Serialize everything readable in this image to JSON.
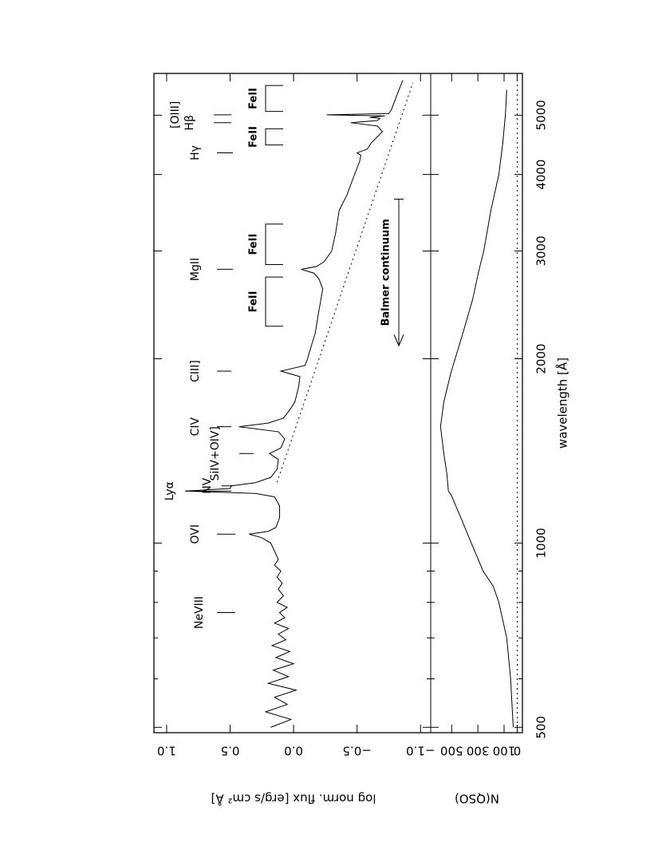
{
  "chart_data": [
    {
      "type": "line",
      "ylabel": "log norm. flux [erg/s cm² Å]",
      "xscale": "log",
      "xlim": [
        490,
        5850
      ],
      "ylim": [
        -1.08,
        1.1
      ],
      "yticks": [
        {
          "value": 1.0,
          "label": "1.0"
        },
        {
          "value": 0.5,
          "label": "0.5"
        },
        {
          "value": 0.0,
          "label": "0.0"
        },
        {
          "value": -0.5,
          "label": "−0.5"
        },
        {
          "value": -1.0,
          "label": "−1.0"
        }
      ],
      "x": [
        500,
        515,
        530,
        545,
        560,
        575,
        590,
        605,
        620,
        635,
        650,
        665,
        680,
        695,
        710,
        725,
        740,
        755,
        770,
        785,
        800,
        820,
        840,
        860,
        880,
        900,
        920,
        940,
        960,
        980,
        1000,
        1020,
        1034,
        1045,
        1060,
        1100,
        1150,
        1190,
        1205,
        1216,
        1228,
        1240,
        1255,
        1280,
        1320,
        1370,
        1400,
        1430,
        1480,
        1520,
        1549,
        1570,
        1600,
        1650,
        1700,
        1800,
        1870,
        1909,
        1950,
        2000,
        2100,
        2200,
        2400,
        2600,
        2700,
        2760,
        2800,
        2830,
        2880,
        3000,
        3200,
        3500,
        3700,
        4000,
        4200,
        4300,
        4340,
        4400,
        4500,
        4700,
        4800,
        4861,
        4900,
        4940,
        4960,
        4985,
        5007,
        5030,
        5100,
        5300,
        5500,
        5700
      ],
      "series": [
        {
          "color": "#000000",
          "values": [
            0.18,
            0.02,
            0.22,
            0.05,
            0.15,
            -0.02,
            0.2,
            0.04,
            0.16,
            0.0,
            0.14,
            0.03,
            0.17,
            0.06,
            0.12,
            0.04,
            0.15,
            0.07,
            0.11,
            0.05,
            0.13,
            0.08,
            0.12,
            0.09,
            0.13,
            0.1,
            0.15,
            0.12,
            0.14,
            0.16,
            0.18,
            0.25,
            0.35,
            0.2,
            0.14,
            0.11,
            0.11,
            0.15,
            0.3,
            0.85,
            0.5,
            0.49,
            0.3,
            0.18,
            0.13,
            0.12,
            0.19,
            0.1,
            0.07,
            0.12,
            0.43,
            0.2,
            0.08,
            0.03,
            -0.01,
            -0.04,
            -0.05,
            0.1,
            -0.09,
            -0.11,
            -0.14,
            -0.17,
            -0.2,
            -0.23,
            -0.2,
            -0.16,
            -0.06,
            -0.18,
            -0.24,
            -0.3,
            -0.33,
            -0.36,
            -0.42,
            -0.48,
            -0.52,
            -0.53,
            -0.5,
            -0.58,
            -0.61,
            -0.7,
            -0.66,
            -0.45,
            -0.66,
            -0.68,
            -0.6,
            -0.72,
            -0.26,
            -0.75,
            -0.77,
            -0.8,
            -0.83,
            -0.86
          ]
        }
      ],
      "continuum": {
        "x": [
          1257,
          5650
        ],
        "values": [
          0.13,
          -0.94
        ],
        "style": "dotted"
      },
      "annotations": [
        {
          "label": "NeVIII",
          "x": 770
        },
        {
          "label": "OVI",
          "x": 1034
        },
        {
          "label": "Lyα",
          "x": 1216
        },
        {
          "label": "NV",
          "x": 1240
        },
        {
          "label": "SiIV+OIV]",
          "x": 1400
        },
        {
          "label": "CIV",
          "x": 1549
        },
        {
          "label": "CIII]",
          "x": 1909
        },
        {
          "label": "MgII",
          "x": 2800
        },
        {
          "label": "Hγ",
          "x": 4340
        },
        {
          "label": "Hβ",
          "x": 4861
        },
        {
          "label": "[OIII]",
          "x": 5007
        }
      ],
      "brackets": [
        {
          "label": "FeII",
          "x": [
            2260,
            2720
          ]
        },
        {
          "label": "FeII",
          "x": [
            2850,
            3320
          ]
        },
        {
          "label": "FeII",
          "x": [
            4470,
            4750
          ]
        },
        {
          "label": "FeII",
          "x": [
            5070,
            5590
          ]
        }
      ],
      "arrow": {
        "label": "Balmer continuum",
        "x": [
          3646,
          2100
        ]
      }
    },
    {
      "type": "line",
      "ylabel": "N(QSO)",
      "xlabel": "wavelength [Å]",
      "xscale": "log",
      "xlim": [
        490,
        5850
      ],
      "xticks": [
        500,
        1000,
        2000,
        3000,
        4000,
        5000
      ],
      "xminor": [
        600,
        700,
        800,
        900
      ],
      "ylim": [
        -40,
        660
      ],
      "yticks": [
        0,
        100,
        300,
        500
      ],
      "zero_line": 0,
      "x": [
        500,
        600,
        700,
        800,
        850,
        900,
        1000,
        1100,
        1200,
        1216,
        1300,
        1400,
        1550,
        1700,
        1900,
        2200,
        2500,
        2800,
        3000,
        3500,
        4000,
        4500,
        5000,
        5500
      ],
      "series": [
        {
          "color": "#000000",
          "values": [
            30,
            50,
            80,
            140,
            183,
            260,
            350,
            430,
            505,
            525,
            537,
            560,
            585,
            560,
            505,
            415,
            340,
            290,
            255,
            200,
            140,
            110,
            90,
            80
          ]
        }
      ]
    }
  ]
}
